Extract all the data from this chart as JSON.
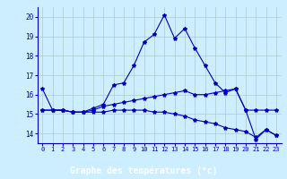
{
  "title": "Graphe des températures (°c)",
  "bg_color": "#cceeff",
  "plot_bg": "#cceeff",
  "line_color": "#0000bb",
  "grid_color": "#aacccc",
  "xlabel_bg": "#2222aa",
  "xlabel_color": "#ffffff",
  "ylim": [
    13.5,
    20.5
  ],
  "xlim": [
    -0.5,
    23.5
  ],
  "yticks": [
    14,
    15,
    16,
    17,
    18,
    19,
    20
  ],
  "xticks": [
    0,
    1,
    2,
    3,
    4,
    5,
    6,
    7,
    8,
    9,
    10,
    11,
    12,
    13,
    14,
    15,
    16,
    17,
    18,
    19,
    20,
    21,
    22,
    23
  ],
  "curve1_x": [
    0,
    1,
    2,
    3,
    4,
    5,
    6,
    7,
    8,
    9,
    10,
    11,
    12,
    13,
    14,
    15,
    16,
    17,
    18,
    19,
    20,
    21,
    22,
    23
  ],
  "curve1_y": [
    16.3,
    15.2,
    15.2,
    15.1,
    15.1,
    15.3,
    15.5,
    16.5,
    16.6,
    17.5,
    18.7,
    19.1,
    20.1,
    18.9,
    19.4,
    18.4,
    17.5,
    16.6,
    16.1,
    16.3,
    15.2,
    13.7,
    14.2,
    13.9
  ],
  "curve2_x": [
    0,
    1,
    2,
    3,
    4,
    5,
    6,
    7,
    8,
    9,
    10,
    11,
    12,
    13,
    14,
    15,
    16,
    17,
    18,
    19,
    20,
    21,
    22,
    23
  ],
  "curve2_y": [
    15.2,
    15.2,
    15.2,
    15.1,
    15.1,
    15.2,
    15.4,
    15.5,
    15.6,
    15.7,
    15.8,
    15.9,
    16.0,
    16.1,
    16.2,
    16.0,
    16.0,
    16.1,
    16.2,
    16.3,
    15.2,
    15.2,
    15.2,
    15.2
  ],
  "curve3_x": [
    0,
    1,
    2,
    3,
    4,
    5,
    6,
    7,
    8,
    9,
    10,
    11,
    12,
    13,
    14,
    15,
    16,
    17,
    18,
    19,
    20,
    21,
    22,
    23
  ],
  "curve3_y": [
    15.2,
    15.2,
    15.2,
    15.1,
    15.1,
    15.1,
    15.1,
    15.2,
    15.2,
    15.2,
    15.2,
    15.1,
    15.1,
    15.0,
    14.9,
    14.7,
    14.6,
    14.5,
    14.3,
    14.2,
    14.1,
    13.8,
    14.2,
    13.9
  ]
}
